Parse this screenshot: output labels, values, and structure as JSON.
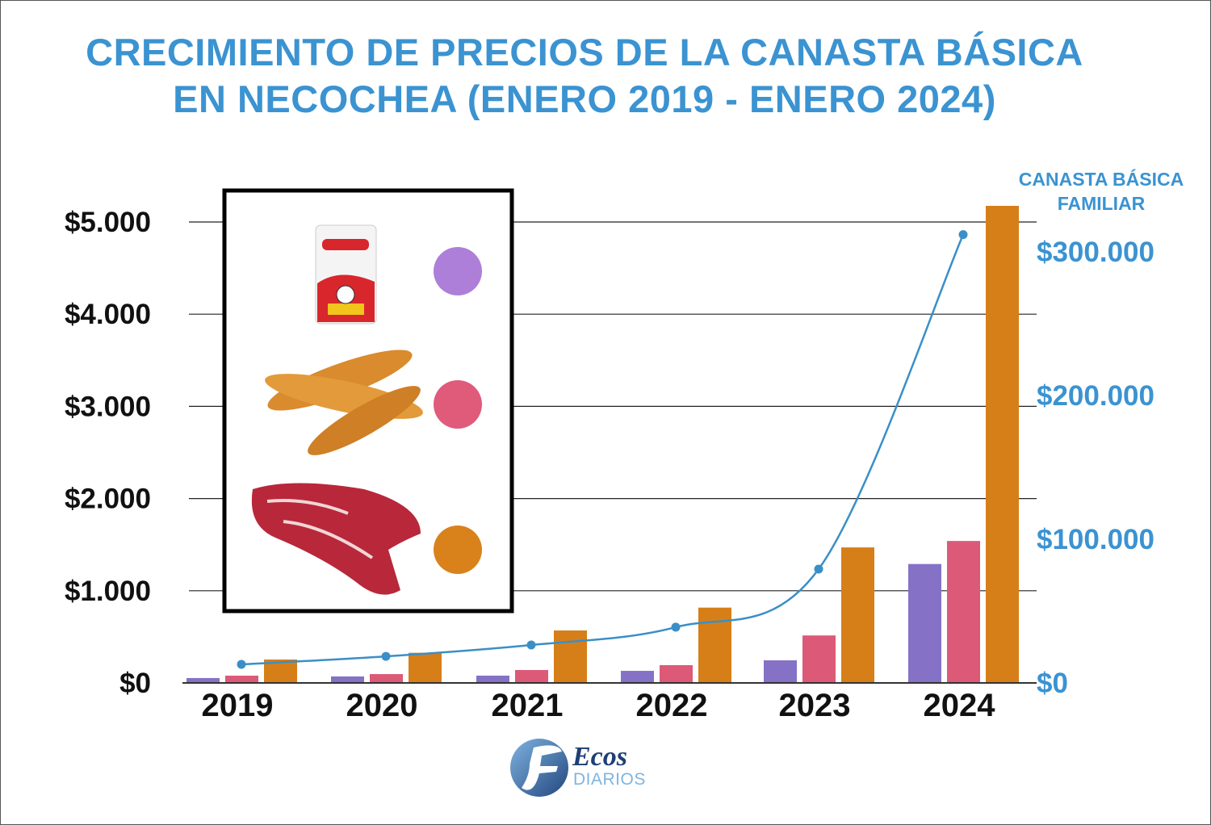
{
  "title_line1": "CRECIMIENTO DE PRECIOS DE LA CANASTA BÁSICA",
  "title_line2": "EN NECOCHEA (ENERO 2019 - ENERO 2024)",
  "logo": {
    "brand": "Ecos",
    "sub": "DIARIOS"
  },
  "chart_data": {
    "type": "bar+line",
    "title": "CRECIMIENTO DE PRECIOS DE LA CANASTA BÁSICA EN NECOCHEA (ENERO 2019 - ENERO 2024)",
    "categories": [
      "2019",
      "2020",
      "2021",
      "2022",
      "2023",
      "2024"
    ],
    "left_axis": {
      "ticks": [
        "$0",
        "$1.000",
        "$2.000",
        "$3.000",
        "$4.000",
        "$5.000"
      ],
      "range": [
        0,
        5000
      ]
    },
    "right_axis": {
      "title_line1": "CANASTA BÁSICA",
      "title_line2": "FAMILIAR",
      "ticks": [
        "$0",
        "$100.000",
        "$200.000",
        "$300.000"
      ],
      "range": [
        0,
        300000
      ]
    },
    "series": [
      {
        "legend_icon": "milk-carton",
        "color": "#8572c6",
        "legend_color": "#ad7fd8",
        "axis": "left",
        "values": [
          53,
          70,
          79,
          131,
          245,
          1290
        ]
      },
      {
        "legend_icon": "bread",
        "color": "#dc5a78",
        "legend_color": "#e05a7a",
        "axis": "left",
        "values": [
          79,
          96,
          140,
          193,
          515,
          1540
        ]
      },
      {
        "legend_icon": "beef-cut",
        "color": "#d67f18",
        "legend_color": "#d9821c",
        "axis": "left",
        "values": [
          254,
          327,
          569,
          817,
          1470,
          5175
        ]
      },
      {
        "type": "line",
        "color": "#3a8fc8",
        "axis": "right",
        "values": [
          12900,
          18500,
          26400,
          38800,
          79200,
          312000
        ]
      }
    ],
    "grid": true
  }
}
